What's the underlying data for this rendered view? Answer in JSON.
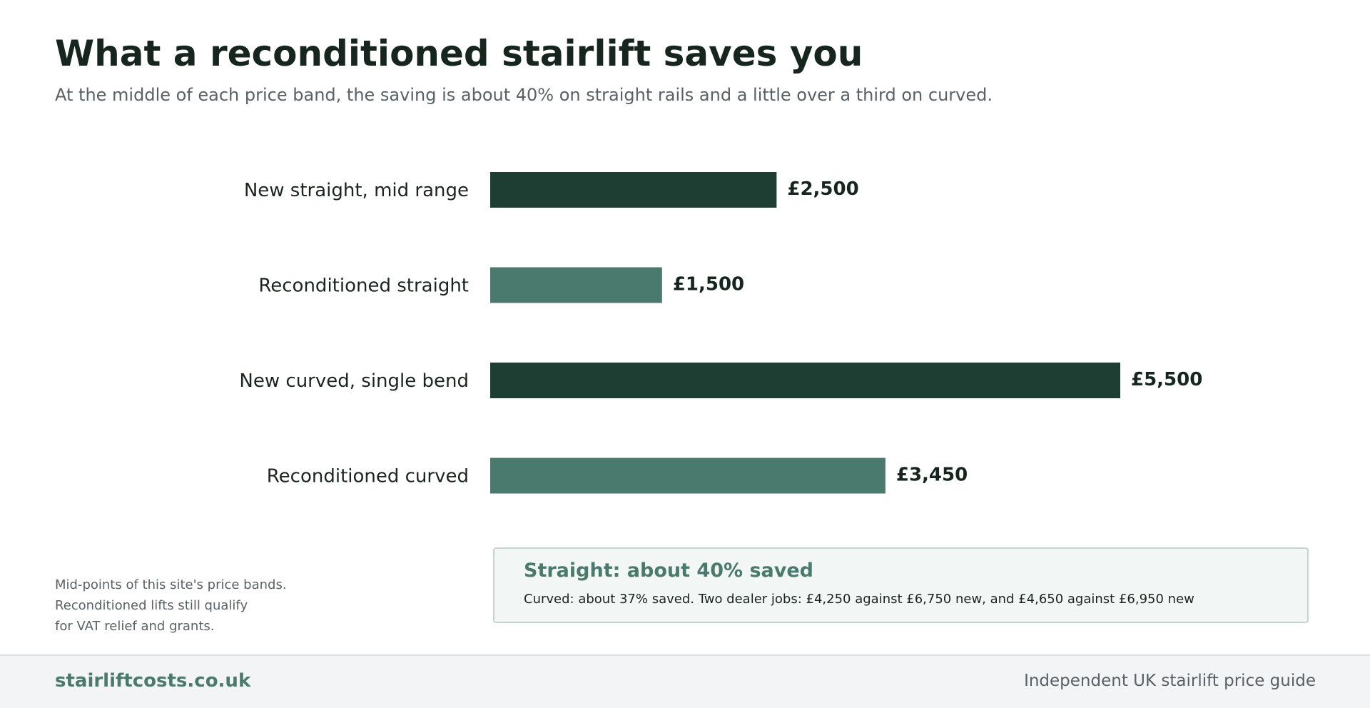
{
  "header": {
    "title": "What a reconditioned stairlift saves you",
    "subtitle": "At the middle of each price band, the saving is about 40% on straight rails and a little over a third on curved."
  },
  "chart_data": {
    "type": "bar",
    "orientation": "horizontal",
    "categories": [
      "New straight, mid range",
      "Reconditioned straight",
      "New curved, single bend",
      "Reconditioned curved"
    ],
    "values": [
      2500,
      1500,
      5500,
      3450
    ],
    "value_labels": [
      "£2,500",
      "£1,500",
      "£5,500",
      "£3,450"
    ],
    "bar_colors": [
      "#1e3d33",
      "#4a7a6d",
      "#1e3d33",
      "#4a7a6d"
    ],
    "xlim": [
      0,
      5500
    ],
    "grid": false,
    "title": "",
    "xlabel": "",
    "ylabel": ""
  },
  "note": {
    "lines": [
      "Mid-points of this site's price bands.",
      "Reconditioned lifts still qualify",
      "for VAT relief and grants."
    ]
  },
  "callout": {
    "heading": "Straight: about 40% saved",
    "text": "Curved: about 37% saved. Two dealer jobs: £4,250 against £6,750 new, and £4,650 against £6,950 new"
  },
  "footer": {
    "brand": "stairliftcosts.co.uk",
    "tagline": "Independent UK stairlift price guide"
  },
  "colors": {
    "dark_green": "#1e3d33",
    "mid_green": "#4a7a6d",
    "accent": "#4a7a6b"
  }
}
